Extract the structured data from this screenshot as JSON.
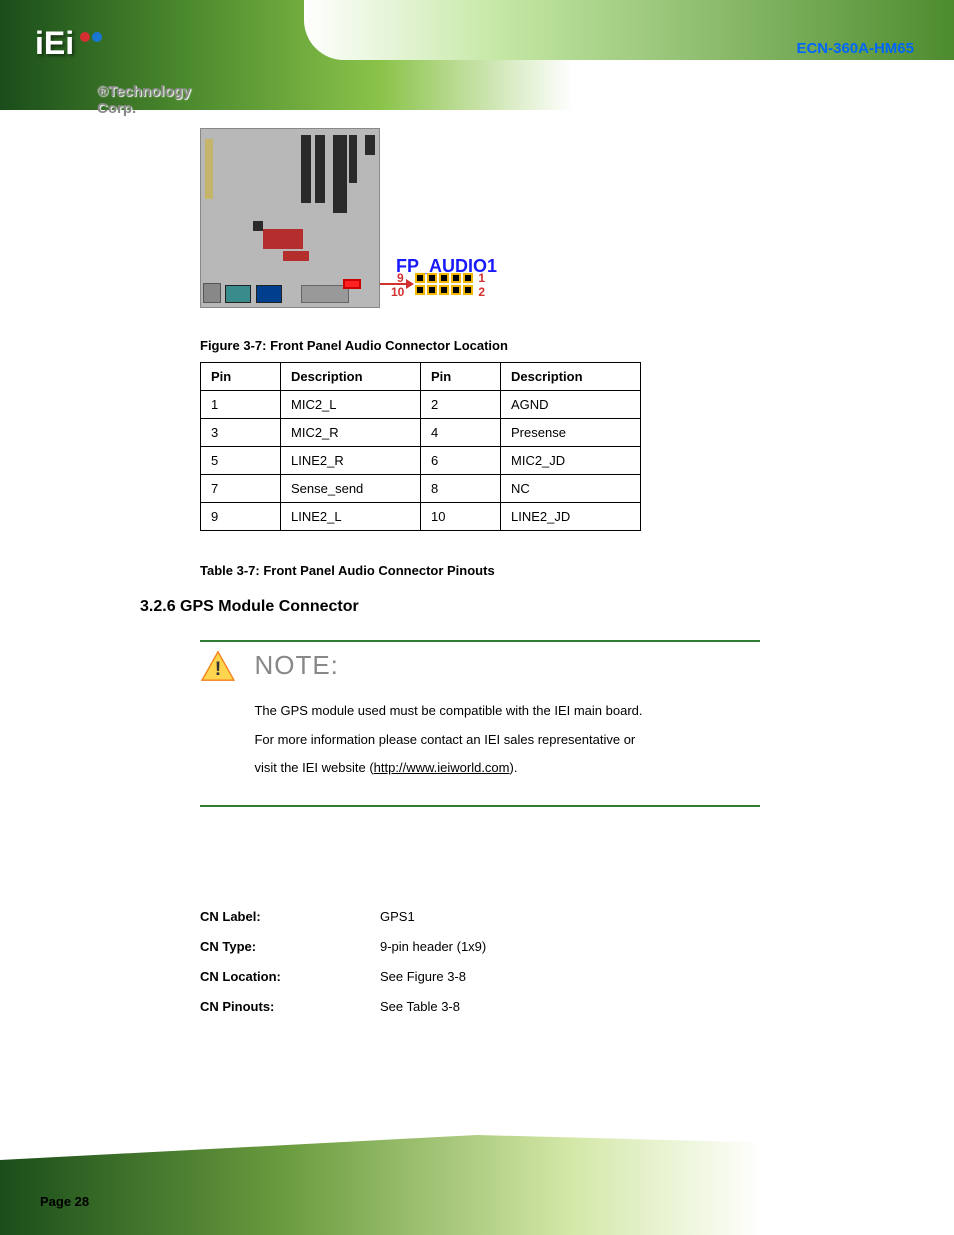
{
  "header": {
    "logo_text": "iEi",
    "company": "®Technology Corp.",
    "product": "ECN-360A-HM65"
  },
  "figure": {
    "connector_name": "FP_AUDIO1",
    "pin_start_top": "9",
    "pin_start_bottom": "10",
    "pin_end_top": "1",
    "pin_end_bottom": "2",
    "caption": "Figure 3-7: Front Panel Audio Connector Location"
  },
  "pin_table": {
    "headers": [
      "Pin",
      "Description",
      "Pin",
      "Description"
    ],
    "rows": [
      [
        "1",
        "MIC2_L",
        "2",
        "AGND"
      ],
      [
        "3",
        "MIC2_R",
        "4",
        "Presense"
      ],
      [
        "5",
        "LINE2_R",
        "6",
        "MIC2_JD"
      ],
      [
        "7",
        "Sense_send",
        "8",
        "NC"
      ],
      [
        "9",
        "LINE2_L",
        "10",
        "LINE2_JD"
      ]
    ],
    "caption": "Table 3-7: Front Panel Audio Connector Pinouts",
    "border_color": "#000000",
    "header_bg": "#ffffff",
    "font_size": 13
  },
  "section": {
    "number": "3.2.6",
    "title": "GPS Module Connector"
  },
  "note": {
    "title": "NOTE:",
    "body_1": "The GPS module used must be compatible with the IEI main board.",
    "body_2": "For more information please contact an IEI sales representative or",
    "body_3": "visit the IEI website (",
    "url": "http://www.ieiworld.com",
    "body_4": ").",
    "hr_color": "#2e7d32",
    "title_color": "#888888",
    "title_fontsize": 26
  },
  "connector_info": {
    "rows": [
      {
        "label": "CN Label:",
        "value": "GPS1"
      },
      {
        "label": "CN Type:",
        "value": "9-pin header (1x9)"
      },
      {
        "label": "CN Location:",
        "value": "See Figure 3-8"
      },
      {
        "label": "CN Pinouts:",
        "value": "See Table 3-8"
      }
    ]
  },
  "page_number": "Page 28",
  "colors": {
    "brand_green_dark": "#1a4d1a",
    "brand_green": "#2e7d32",
    "link_blue": "#1a1aff",
    "pin_red": "#d32f2f",
    "pin_yellow": "#f0b800"
  }
}
